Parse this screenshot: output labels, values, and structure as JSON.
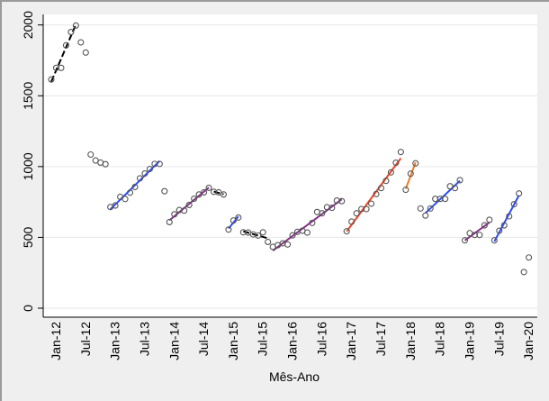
{
  "chart_data": {
    "type": "scatter",
    "title": "",
    "xlabel": "Mês-Ano",
    "ylabel": "",
    "ylim": [
      0,
      2000
    ],
    "yticks": [
      0,
      500,
      1000,
      1500,
      2000
    ],
    "ytick_labels": [
      "0",
      "500",
      "1000",
      "1500",
      "2000"
    ],
    "x_start": "Jan-12",
    "x_unit": "month index (0 = Jan-12)",
    "xlim": [
      0,
      97
    ],
    "xticks": [
      0,
      6,
      12,
      18,
      24,
      30,
      36,
      42,
      48,
      54,
      60,
      66,
      72,
      78,
      84,
      90,
      96
    ],
    "xtick_labels": [
      "Jan-12",
      "Jul-12",
      "Jan-13",
      "Jul-13",
      "Jan-14",
      "Jul-14",
      "Jan-15",
      "Jul-15",
      "Jan-16",
      "Jul-16",
      "Jan-17",
      "Jul-17",
      "Jan-18",
      "Jul-18",
      "Jan-19",
      "Jul-19",
      "Jan-20"
    ],
    "grid": true,
    "values": [
      1615,
      1697,
      1697,
      1856,
      1950,
      1996,
      1877,
      1805,
      1085,
      1043,
      1028,
      1017,
      714,
      725,
      786,
      771,
      816,
      856,
      917,
      951,
      983,
      1019,
      1019,
      826,
      608,
      663,
      693,
      689,
      729,
      773,
      803,
      818,
      850,
      822,
      818,
      803,
      555,
      619,
      640,
      536,
      534,
      521,
      513,
      536,
      468,
      433,
      445,
      458,
      450,
      514,
      539,
      547,
      534,
      602,
      679,
      670,
      713,
      709,
      760,
      756,
      543,
      611,
      670,
      700,
      700,
      738,
      806,
      848,
      899,
      959,
      1027,
      1103,
      836,
      950,
      1023,
      704,
      654,
      704,
      772,
      772,
      772,
      861,
      848,
      904,
      479,
      530,
      517,
      517,
      585,
      624,
      479,
      547,
      585,
      649,
      734,
      810,
      255,
      358
    ],
    "fit_segments": [
      {
        "start": 0,
        "end": 5,
        "color": "#000000",
        "dashed": true
      },
      {
        "start": 12,
        "end": 22,
        "color": "#2a4bff",
        "dashed": false
      },
      {
        "start": 24,
        "end": 32,
        "color": "#87308a",
        "dashed": false
      },
      {
        "start": 33,
        "end": 35,
        "color": "#000000",
        "dashed": true
      },
      {
        "start": 36,
        "end": 38,
        "color": "#2a4bff",
        "dashed": false
      },
      {
        "start": 39,
        "end": 44,
        "color": "#000000",
        "dashed": true
      },
      {
        "start": 45,
        "end": 59,
        "color": "#87308a",
        "dashed": false
      },
      {
        "start": 60,
        "end": 71,
        "color": "#ef4423",
        "dashed": false
      },
      {
        "start": 72,
        "end": 74,
        "color": "#f07a22",
        "dashed": false
      },
      {
        "start": 76,
        "end": 83,
        "color": "#2a4bff",
        "dashed": false
      },
      {
        "start": 84,
        "end": 89,
        "color": "#87308a",
        "dashed": false
      },
      {
        "start": 90,
        "end": 95,
        "color": "#2a4bff",
        "dashed": false
      }
    ]
  }
}
